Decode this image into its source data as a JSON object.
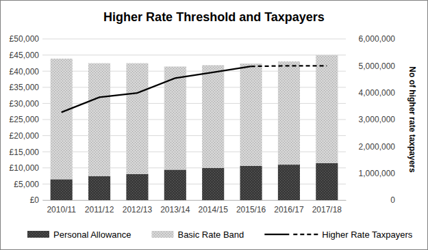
{
  "chart_data": {
    "type": "bar",
    "title": "Higher Rate Threshold and Taxpayers",
    "categories": [
      "2010/11",
      "2011/12",
      "2012/13",
      "2013/14",
      "2014/15",
      "2015/16",
      "2016/17",
      "2017/18"
    ],
    "stacked": true,
    "grid": true,
    "legend": "bottom",
    "ylim": [
      0,
      50000
    ],
    "yticks": [
      {
        "value": 0,
        "label": "£0"
      },
      {
        "value": 5000,
        "label": "£5,000"
      },
      {
        "value": 10000,
        "label": "£10,000"
      },
      {
        "value": 15000,
        "label": "£15,000"
      },
      {
        "value": 20000,
        "label": "£20,000"
      },
      {
        "value": 25000,
        "label": "£25,000"
      },
      {
        "value": 30000,
        "label": "£30,000"
      },
      {
        "value": 35000,
        "label": "£35,000"
      },
      {
        "value": 40000,
        "label": "£40,000"
      },
      {
        "value": 45000,
        "label": "£45,000"
      },
      {
        "value": 50000,
        "label": "£50,000"
      }
    ],
    "y2lim": [
      0,
      6000000
    ],
    "y2ticks": [
      0,
      {
        "value": 1000000,
        "label": "1,000,000"
      },
      {
        "value": 2000000,
        "label": "2,000,000"
      },
      {
        "value": 3000000,
        "label": "3,000,000"
      },
      {
        "value": 4000000,
        "label": "4,000,000"
      },
      {
        "value": 5000000,
        "label": "5,000,000"
      },
      {
        "value": 6000000,
        "label": "6,000,000"
      }
    ],
    "y2label": "No of higher rate taxpayers",
    "series": [
      {
        "name": "Personal Allowance",
        "type": "bar",
        "color": "#3a3a3a",
        "values": [
          6475,
          7475,
          8105,
          9440,
          10000,
          10600,
          11000,
          11500
        ]
      },
      {
        "name": "Basic Rate Band",
        "type": "bar",
        "color": "#d4d4d4",
        "values": [
          37400,
          35000,
          34370,
          32010,
          31865,
          31785,
          32000,
          33500
        ]
      },
      {
        "name": "Higher Rate Taxpayers",
        "type": "line",
        "axis": "y2",
        "color": "#000000",
        "line_style": "solid",
        "values": [
          3270000,
          3830000,
          3990000,
          4540000,
          4760000,
          4980000,
          null,
          null
        ]
      },
      {
        "type": "line",
        "axis": "y2",
        "color": "#000000",
        "line_style": "dashed",
        "values": [
          null,
          null,
          null,
          null,
          null,
          4980000,
          5000000,
          5000000
        ]
      }
    ]
  }
}
